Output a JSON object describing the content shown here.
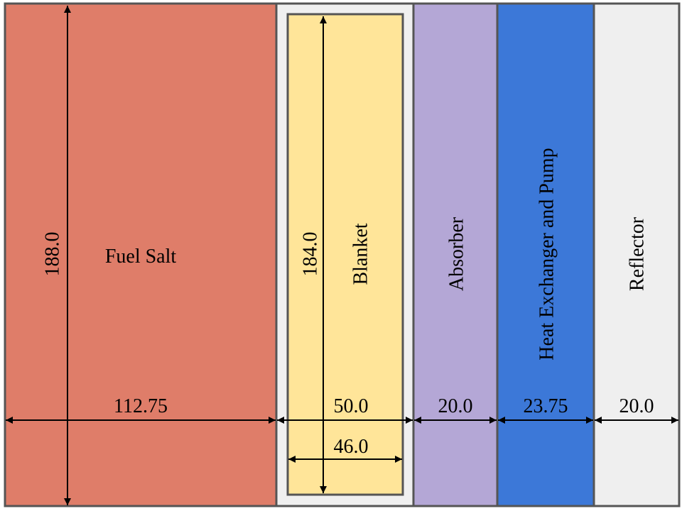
{
  "regions": {
    "fuel_salt": {
      "label": "Fuel Salt",
      "width": "112.75",
      "height": "188.0",
      "color": "#df7d69"
    },
    "gap": {
      "label": "",
      "width": "50.0",
      "color": "#f0f0f0"
    },
    "blanket": {
      "label": "Blanket",
      "width": "46.0",
      "height": "184.0",
      "color": "#ffe599"
    },
    "absorber": {
      "label": "Absorber",
      "width": "20.0",
      "color": "#b4a7d6"
    },
    "heat_exchanger": {
      "label": "Heat Exchanger and Pump",
      "width": "23.75",
      "color": "#3c78d8"
    },
    "reflector": {
      "label": "Reflector",
      "width": "20.0",
      "color": "#efefef"
    }
  }
}
